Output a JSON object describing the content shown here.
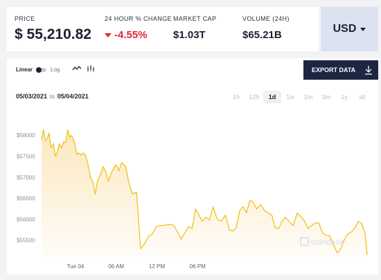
{
  "stats": {
    "price": {
      "label": "PRICE",
      "value": "$ 55,210.82"
    },
    "change": {
      "label": "24 HOUR % CHANGE",
      "value": "-4.55%"
    },
    "market_cap": {
      "label": "MARKET CAP",
      "value": "$1.03T"
    },
    "volume": {
      "label": "VOLUME (24H)",
      "value": "$65.21B"
    }
  },
  "currency": {
    "selected": "USD"
  },
  "controls": {
    "scale_linear": "Linear",
    "scale_log": "Log",
    "export_label": "EXPORT DATA",
    "date_from": "05/03/2021",
    "date_to_sep": "to",
    "date_to": "05/04/2021",
    "ranges": [
      "1h",
      "12h",
      "1d",
      "1w",
      "1m",
      "3m",
      "1y",
      "all"
    ],
    "active_range": "1d"
  },
  "watermark": "coindesk",
  "colors": {
    "line": "#f2c218",
    "fill_top": "#fbe6b9",
    "down": "#e3262f",
    "button": "#1d2641"
  },
  "chart_data": {
    "type": "area",
    "x_unit": "hours since 2021-05-03 20:00",
    "x": [
      0,
      0.3,
      0.55,
      0.8,
      1.1,
      1.4,
      1.75,
      2.05,
      2.35,
      2.6,
      2.95,
      3.25,
      3.55,
      3.85,
      4.15,
      4.4,
      4.65,
      4.9,
      5.2,
      5.5,
      5.8,
      6.15,
      6.5,
      6.85,
      7.2,
      7.55,
      7.9,
      8.3,
      8.65,
      9.05,
      9.45,
      9.85,
      10.25,
      10.6,
      10.9,
      11.15,
      11.4,
      11.8,
      12.4,
      12.9,
      13.4,
      14,
      14.6,
      15.2,
      15.8,
      16.35,
      16.9,
      17.4,
      17.9,
      18.45,
      19,
      19.5,
      20.05,
      20.6,
      21.2,
      21.7,
      22.2,
      22.7,
      23.2,
      23.7,
      24.2,
      24.75,
      25.3,
      25.9,
      26.5,
      27.1,
      27.7,
      28.2,
      28.7,
      29.2,
      29.7,
      30.2,
      30.7,
      31.15,
      31.7,
      32.3,
      32.9,
      33.45,
      33.95,
      34.45,
      34.95,
      35.45,
      35.95,
      36.5,
      37.1,
      37.7,
      38.3,
      38.8,
      39.3,
      39.8,
      40.3,
      40.85,
      41.4,
      41.95,
      42.5,
      43.05,
      43.6,
      44.1,
      44.6,
      45.15,
      45.7,
      46.2,
      46.7,
      47.2,
      47.7,
      48
    ],
    "y": [
      57900,
      58130,
      57870,
      57910,
      58050,
      57700,
      57800,
      57500,
      57600,
      57800,
      57700,
      57850,
      57820,
      58130,
      57950,
      58000,
      57930,
      57800,
      57550,
      57580,
      57520,
      57580,
      57520,
      57300,
      57000,
      56900,
      56600,
      56950,
      57050,
      57250,
      57150,
      56900,
      57100,
      57200,
      57300,
      57250,
      57150,
      57350,
      57260,
      56850,
      56600,
      56650,
      55300,
      55420,
      55600,
      55650,
      55820,
      55850,
      55850,
      55870,
      55880,
      55850,
      55700,
      55530,
      55700,
      55830,
      55780,
      56250,
      56100,
      55950,
      56050,
      55980,
      56300,
      56000,
      55950,
      56100,
      55750,
      55720,
      55800,
      56200,
      56300,
      56150,
      56450,
      56420,
      56250,
      56350,
      56200,
      56150,
      56100,
      55800,
      55780,
      55950,
      56050,
      55950,
      55850,
      56150,
      56050,
      55950,
      55780,
      55850,
      55910,
      55920,
      55680,
      55620,
      55600,
      55400,
      55200,
      55300,
      55500,
      55650,
      55700,
      55800,
      55950,
      55900,
      55650,
      55150
    ],
    "ylim": [
      55100,
      58250
    ],
    "y_ticks": [
      55500,
      56000,
      56500,
      57000,
      57500,
      58000
    ],
    "y_tick_labels": [
      "$55500",
      "$56000",
      "$56500",
      "$57000",
      "$57500",
      "$58000"
    ],
    "x_ticks": [
      5,
      11,
      17,
      23
    ],
    "x_tick_labels": [
      "Tue 04",
      "06 AM",
      "12 PM",
      "06 PM"
    ],
    "xlim": [
      0,
      48
    ],
    "grid": false
  }
}
